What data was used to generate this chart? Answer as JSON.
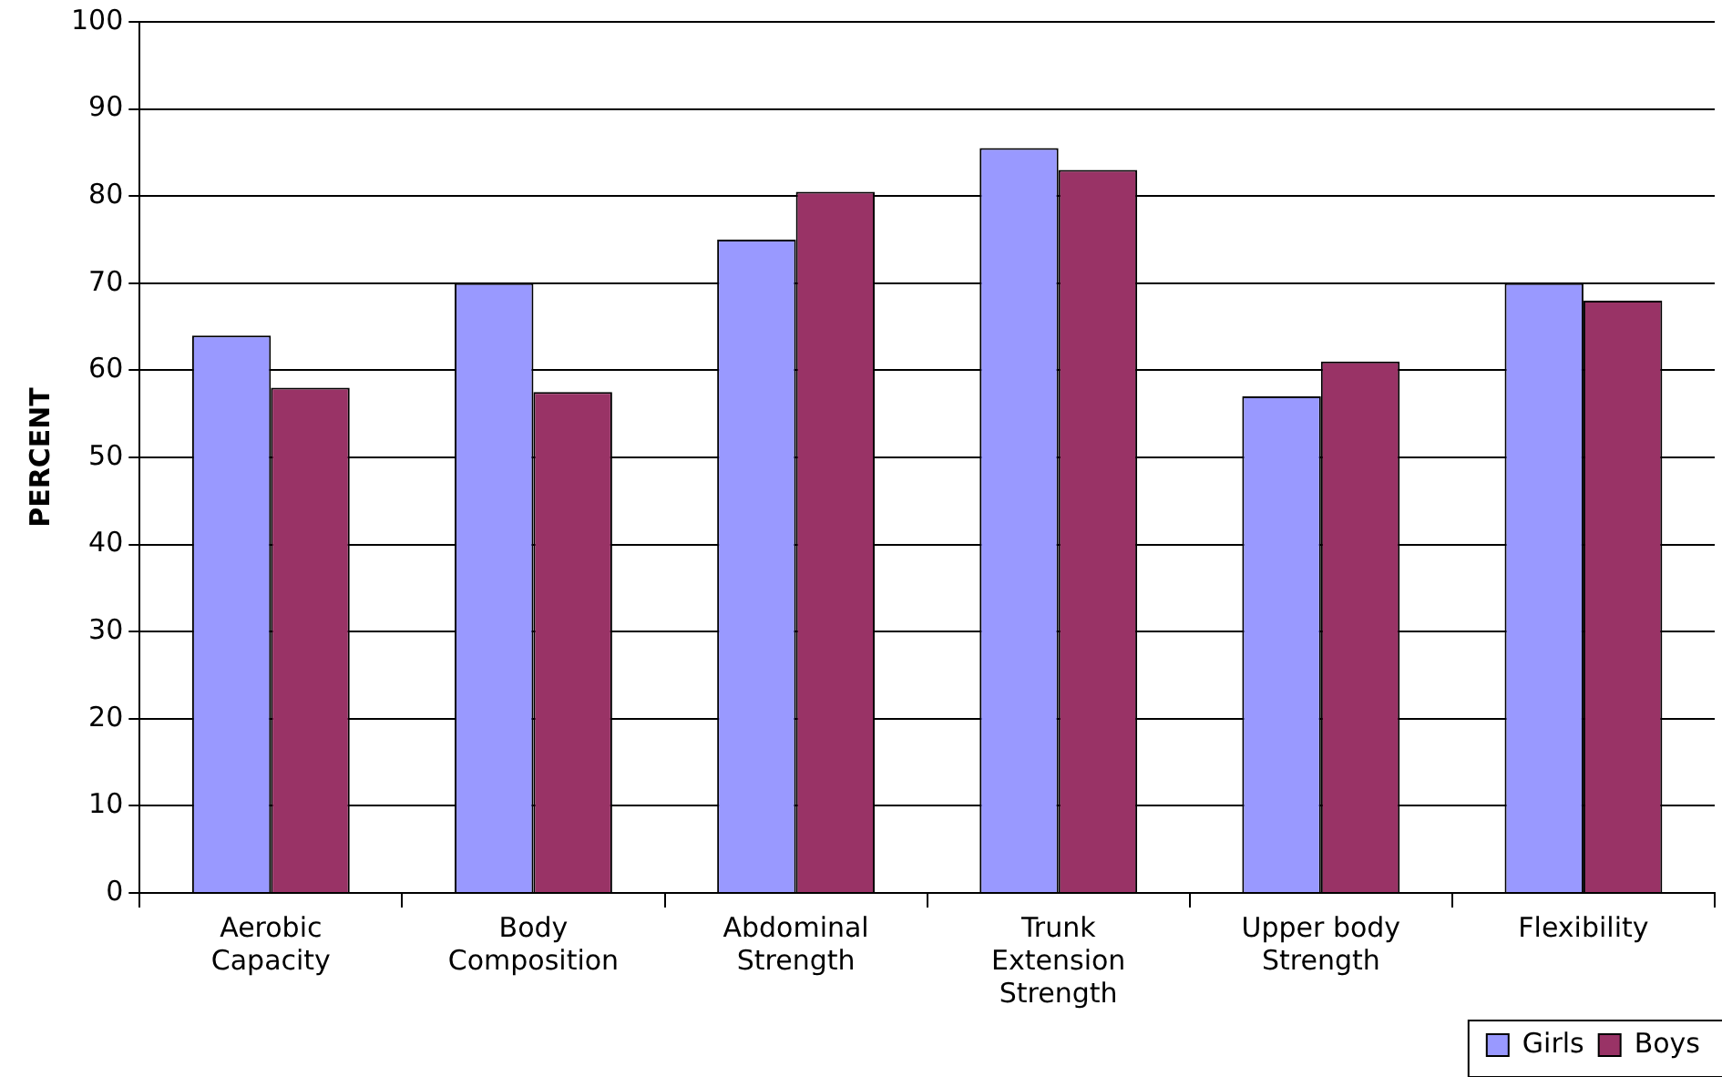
{
  "chart_data": {
    "type": "bar",
    "ylabel": "PERCENT",
    "categories": [
      "Aerobic Capacity",
      "Body Composition",
      "Abdominal Strength",
      "Trunk Extension Strength",
      "Upper body Strength",
      "Flexibility"
    ],
    "series": [
      {
        "name": "Girls",
        "color": "#9999ff",
        "values": [
          64,
          70,
          75,
          85.5,
          57,
          70
        ]
      },
      {
        "name": "Boys",
        "color": "#993366",
        "values": [
          58,
          57.5,
          80.5,
          83,
          61,
          68
        ]
      }
    ],
    "ylim": [
      0,
      100
    ],
    "yticks": [
      0,
      10,
      20,
      30,
      40,
      50,
      60,
      70,
      80,
      90,
      100
    ],
    "grid": "y",
    "legend": "bottom right"
  }
}
